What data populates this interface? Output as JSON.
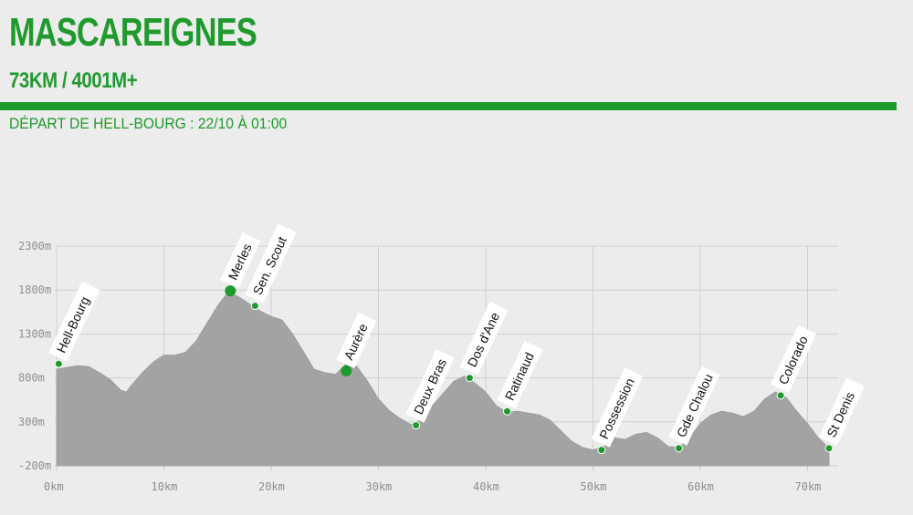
{
  "header": {
    "title": "MASCAREIGNES",
    "stats": "73KM / 4001M+",
    "start": "DÉPART DE HELL-BOURG : 22/10 À 01:00"
  },
  "colors": {
    "brand": "#1f9a2c",
    "profile_fill": "#a3a3a3",
    "background": "#ececec",
    "grid": "#cfcfcf",
    "marker": "#1f9a2c"
  },
  "chart_data": {
    "type": "area",
    "title": "",
    "xlabel": "",
    "ylabel": "",
    "xlim": [
      0,
      72
    ],
    "ylim": [
      -200,
      2300
    ],
    "grid": true,
    "x_ticks": [
      0,
      10,
      20,
      30,
      40,
      50,
      60,
      70
    ],
    "x_tick_labels": [
      "0km",
      "10km",
      "20km",
      "30km",
      "40km",
      "50km",
      "60km",
      "70km"
    ],
    "y_ticks": [
      2300,
      1800,
      1300,
      800,
      300,
      -200
    ],
    "y_tick_labels": [
      "2300m",
      "1800m",
      "1300m",
      "800m",
      "300m",
      "-200m"
    ],
    "series": [
      {
        "x": [
          0,
          1,
          2,
          3,
          4,
          5,
          6,
          6.5,
          7,
          8,
          9,
          10,
          11,
          12,
          13,
          14,
          15,
          16,
          17,
          18,
          19,
          20,
          21,
          22,
          23,
          24,
          25,
          26,
          27,
          28,
          29,
          30,
          31,
          32,
          33,
          34,
          35,
          36,
          37,
          38,
          39,
          40,
          41,
          42,
          43,
          44,
          45,
          46,
          47,
          48,
          49,
          50,
          51,
          52,
          53,
          54,
          55,
          56,
          57,
          58,
          59,
          60,
          61,
          62,
          63,
          64,
          65,
          66,
          67,
          68,
          69,
          70,
          71,
          72
        ],
        "y": [
          900,
          920,
          940,
          930,
          860,
          780,
          660,
          640,
          720,
          860,
          980,
          1060,
          1060,
          1090,
          1220,
          1420,
          1620,
          1780,
          1720,
          1640,
          1560,
          1500,
          1460,
          1300,
          1100,
          900,
          860,
          840,
          960,
          930,
          760,
          560,
          430,
          340,
          270,
          330,
          480,
          620,
          760,
          820,
          740,
          640,
          480,
          410,
          420,
          400,
          380,
          320,
          200,
          80,
          10,
          -20,
          20,
          120,
          100,
          160,
          180,
          120,
          20,
          10,
          120,
          280,
          380,
          420,
          400,
          360,
          420,
          560,
          640,
          580,
          420,
          280,
          120,
          0
        ]
      }
    ],
    "waypoints": [
      {
        "name": "Hell-Bourg",
        "km": 0.2,
        "elev": 960
      },
      {
        "name": "Merles",
        "km": 16.2,
        "elev": 1790
      },
      {
        "name": "Sen. Scout",
        "km": 18.5,
        "elev": 1620
      },
      {
        "name": "Aurère",
        "km": 27,
        "elev": 880
      },
      {
        "name": "Deux Bras",
        "km": 33.5,
        "elev": 260
      },
      {
        "name": "Dos d'Ane",
        "km": 38.5,
        "elev": 800
      },
      {
        "name": "Ratinaud",
        "km": 42,
        "elev": 420
      },
      {
        "name": "Possession",
        "km": 50.8,
        "elev": -20
      },
      {
        "name": "Gde Chalou",
        "km": 58,
        "elev": 0
      },
      {
        "name": "Colorado",
        "km": 67.5,
        "elev": 600
      },
      {
        "name": "St Denis",
        "km": 72,
        "elev": 0
      }
    ]
  }
}
